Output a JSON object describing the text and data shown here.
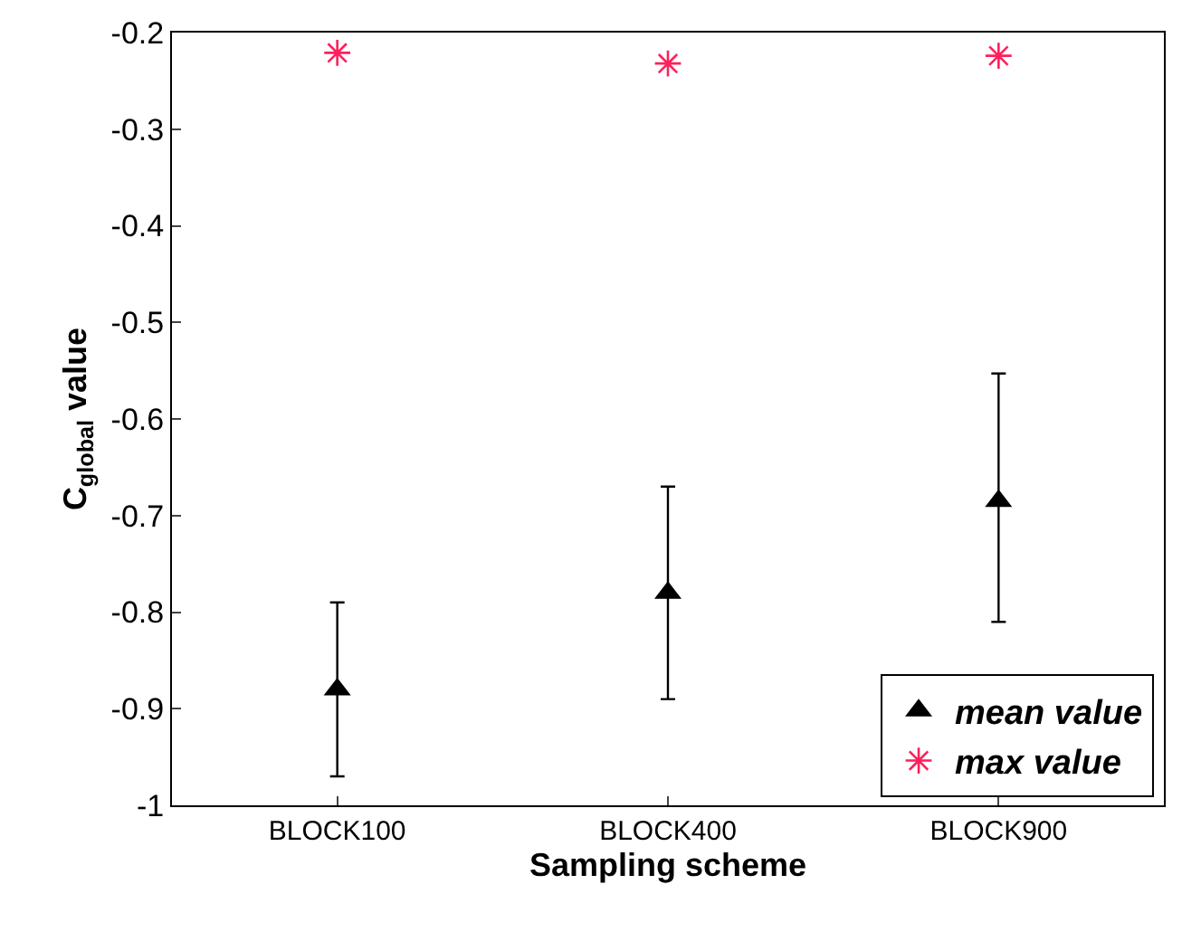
{
  "chart_data": {
    "type": "scatter",
    "xlabel": "Sampling scheme",
    "ylabel": "C$_{global}$ value",
    "categories": [
      "BLOCK100",
      "BLOCK400",
      "BLOCK900"
    ],
    "series": [
      {
        "name": "mean value",
        "color": "#000000",
        "marker": "triangle",
        "values": [
          -0.88,
          -0.78,
          -0.685
        ],
        "errors": [
          [
            -0.97,
            -0.79
          ],
          [
            -0.89,
            -0.67
          ],
          [
            -0.81,
            -0.553
          ]
        ]
      },
      {
        "name": "max value",
        "color": "#ff1f5b",
        "marker": "cross",
        "values": [
          -0.221,
          -0.232,
          -0.224
        ]
      }
    ],
    "ylim": [
      -1,
      -0.2
    ],
    "yticks": [
      -1,
      -0.9,
      -0.8,
      -0.7,
      -0.6,
      -0.5,
      -0.4,
      -0.3,
      -0.2
    ],
    "legend": "bottom right"
  }
}
